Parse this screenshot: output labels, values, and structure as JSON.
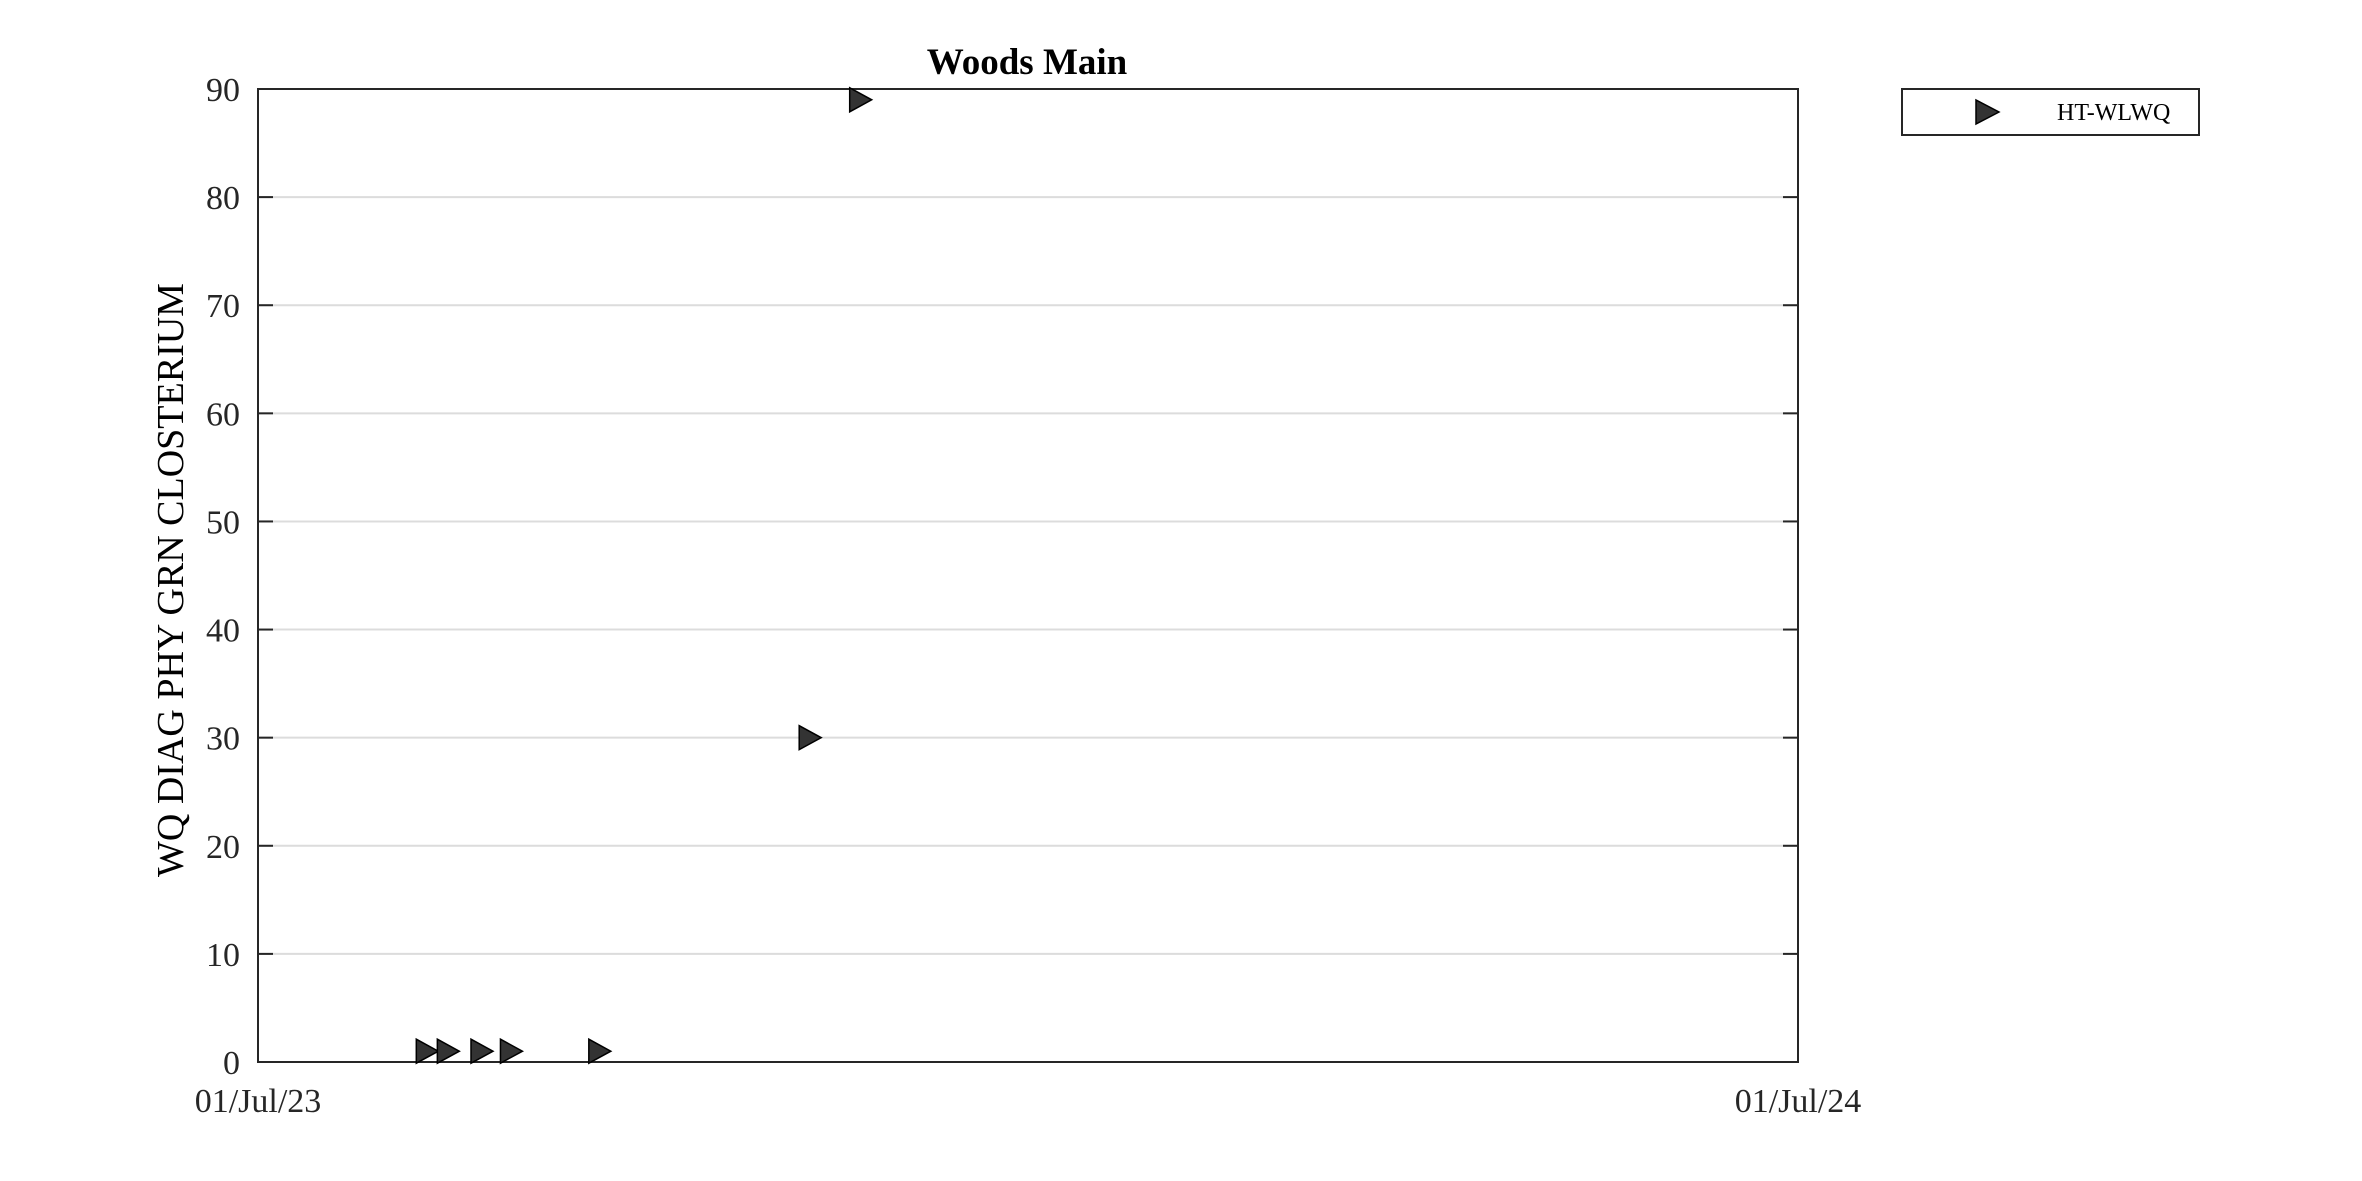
{
  "chart_data": {
    "type": "scatter",
    "title": "Woods Main",
    "xlabel": "",
    "ylabel": "WQ DIAG PHY GRN CLOSTERIUM",
    "x_axis_type": "date",
    "xlim": [
      "2023-07-01",
      "2024-07-01"
    ],
    "x_tick_labels": [
      "01/Jul/23",
      "01/Jul/24"
    ],
    "ylim": [
      0,
      90
    ],
    "y_ticks": [
      0,
      10,
      20,
      30,
      40,
      50,
      60,
      70,
      80,
      90
    ],
    "grid": "horizontal",
    "legend_position": "outside-top-right",
    "marker": "right-triangle",
    "marker_color": "#333333",
    "series": [
      {
        "name": "HT-WLWQ",
        "points": [
          {
            "x": "2023-08-10",
            "y": 1
          },
          {
            "x": "2023-08-15",
            "y": 1
          },
          {
            "x": "2023-08-23",
            "y": 1
          },
          {
            "x": "2023-08-30",
            "y": 1
          },
          {
            "x": "2023-09-20",
            "y": 1
          },
          {
            "x": "2023-11-09",
            "y": 30
          },
          {
            "x": "2023-11-21",
            "y": 89
          }
        ]
      }
    ]
  }
}
